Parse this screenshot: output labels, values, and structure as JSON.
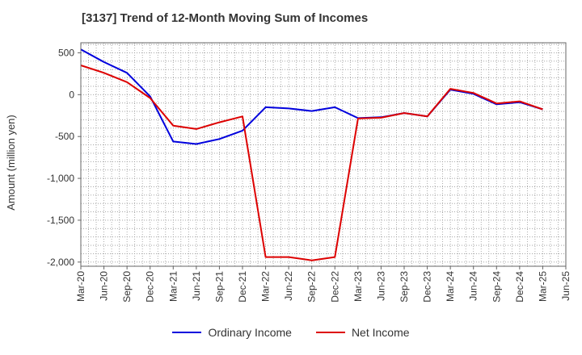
{
  "chart_data": {
    "type": "line",
    "title": "[3137]  Trend of 12-Month Moving Sum of Incomes",
    "xlabel": "",
    "ylabel": "Amount (million yen)",
    "ylim": [
      -2050,
      620
    ],
    "yticks": [
      500,
      0,
      -500,
      -1000,
      -1500,
      -2000
    ],
    "ytick_labels": [
      "500",
      "0",
      "-500",
      "-1,000",
      "-1,500",
      "-2,000"
    ],
    "categories": [
      "Mar-20",
      "Jun-20",
      "Sep-20",
      "Dec-20",
      "Mar-21",
      "Jun-21",
      "Sep-21",
      "Dec-21",
      "Mar-22",
      "Jun-22",
      "Sep-22",
      "Dec-22",
      "Mar-23",
      "Jun-23",
      "Sep-23",
      "Dec-23",
      "Mar-24",
      "Jun-24",
      "Sep-24",
      "Dec-24",
      "Mar-25",
      "Jun-25"
    ],
    "series": [
      {
        "name": "Ordinary Income",
        "color": "#0000dd",
        "values": [
          540,
          390,
          260,
          -20,
          -560,
          -590,
          -530,
          -430,
          -150,
          -165,
          -195,
          -150,
          -280,
          -270,
          -220,
          -260,
          60,
          10,
          -115,
          -90,
          -175,
          null
        ]
      },
      {
        "name": "Net Income",
        "color": "#dd0000",
        "values": [
          350,
          260,
          150,
          -40,
          -370,
          -410,
          -330,
          -260,
          -1940,
          -1940,
          -1980,
          -1940,
          -285,
          -275,
          -220,
          -260,
          70,
          20,
          -105,
          -80,
          -175,
          null
        ]
      }
    ],
    "grid": true,
    "legend": "bottom-center"
  }
}
